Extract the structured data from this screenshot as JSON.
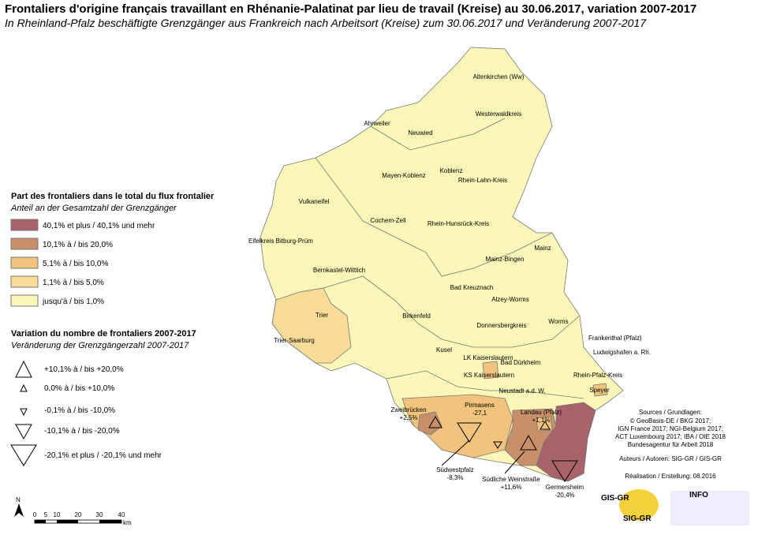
{
  "header": {
    "title": "Frontaliers d'origine français travaillant en Rhénanie-Palatinat par lieu de travail (Kreise) au 30.06.2017, variation 2007-2017",
    "subtitle": "In Rheinland-Pfalz beschäftigte Grenzgänger aus Frankreich nach Arbeitsort (Kreise) zum 30.06.2017 und Veränderung 2007-2017"
  },
  "legend_share": {
    "title": "Part des frontaliers dans le total du flux frontalier",
    "subtitle": "Anteil an der Gesamtzahl der Grenzgänger",
    "items": [
      {
        "label": "40,1% et plus / 40,1% und mehr",
        "color": "#a8636a"
      },
      {
        "label": "10,1% à / bis 20,0%",
        "color": "#c8906a"
      },
      {
        "label": "5,1% à / bis 10,0%",
        "color": "#f2c37c"
      },
      {
        "label": "1,1% à / bis 5,0%",
        "color": "#f8dc98"
      },
      {
        "label": "jusqu'à / bis 1,0%",
        "color": "#fbf7b8"
      }
    ]
  },
  "legend_variation": {
    "title": "Variation du nombre de frontaliers 2007-2017",
    "subtitle": "Veränderung der Grenzgängerzahl 2007-2017",
    "items": [
      "+10,1% à / bis +20,0%",
      "0,0% à / bis +10,0%",
      "-0,1% à / bis -10,0%",
      "-10,1% à / bis -20,0%",
      "-20,1% et plus / -20,1% und mehr"
    ]
  },
  "districts": [
    "Altenkirchen (Ww)",
    "Westerwaldkreis",
    "Neuwied",
    "Ahrweiler",
    "Mayen-Koblenz",
    "Koblenz",
    "Rhein-Lahn-Kreis",
    "Vulkaneifel",
    "Cochem-Zell",
    "Rhein-Hunsrück-Kreis",
    "Eifelkreis Bitburg-Prüm",
    "Bernkastel-Wittlich",
    "Mainz",
    "Mainz-Bingen",
    "Bad Kreuznach",
    "Alzey-Worms",
    "Trier",
    "Trier-Saarburg",
    "Birkenfeld",
    "Donnersbergkreis",
    "Worms",
    "Frankenthal (Pfalz)",
    "Ludwigshafen a. Rh.",
    "Kusel",
    "LK Kaiserslautern",
    "KS Kaiserslautern",
    "Bad Dürkheim",
    "Rhein-Pfalz-Kreis",
    "Speyer",
    "Neustadt a.d. W."
  ],
  "variations": [
    {
      "name": "Zweibrücken",
      "value": "+2,5%"
    },
    {
      "name": "Pirmasens",
      "value": "-27,1"
    },
    {
      "name": "Landau (Pfalz)",
      "value": "+1,1%"
    },
    {
      "name": "Südwestpfalz",
      "value": "-8,3%"
    },
    {
      "name": "Südliche Weinstraße",
      "value": "+11,6%"
    },
    {
      "name": "Germersheim",
      "value": "-20,4%"
    }
  ],
  "sources": [
    "Sources / Grundlagen:",
    "© GeoBasis-DE / BKG 2017;",
    "IGN France 2017; NGI-Belgium 2017;",
    "ACT Luxembourg 2017; IBA / OIE 2018",
    "Bundesagentur für Arbeit 2018",
    "Auteurs / Autoren: SIG-GR / GIS-GR",
    "Réalisation / Erstellung: 08.2016"
  ],
  "scale": {
    "north": "N",
    "ticks": [
      "0",
      "5",
      "10",
      "20",
      "30",
      "40"
    ],
    "unit": "km"
  },
  "logos": [
    "GIS-GR",
    "SIG-GR",
    "INFO"
  ]
}
